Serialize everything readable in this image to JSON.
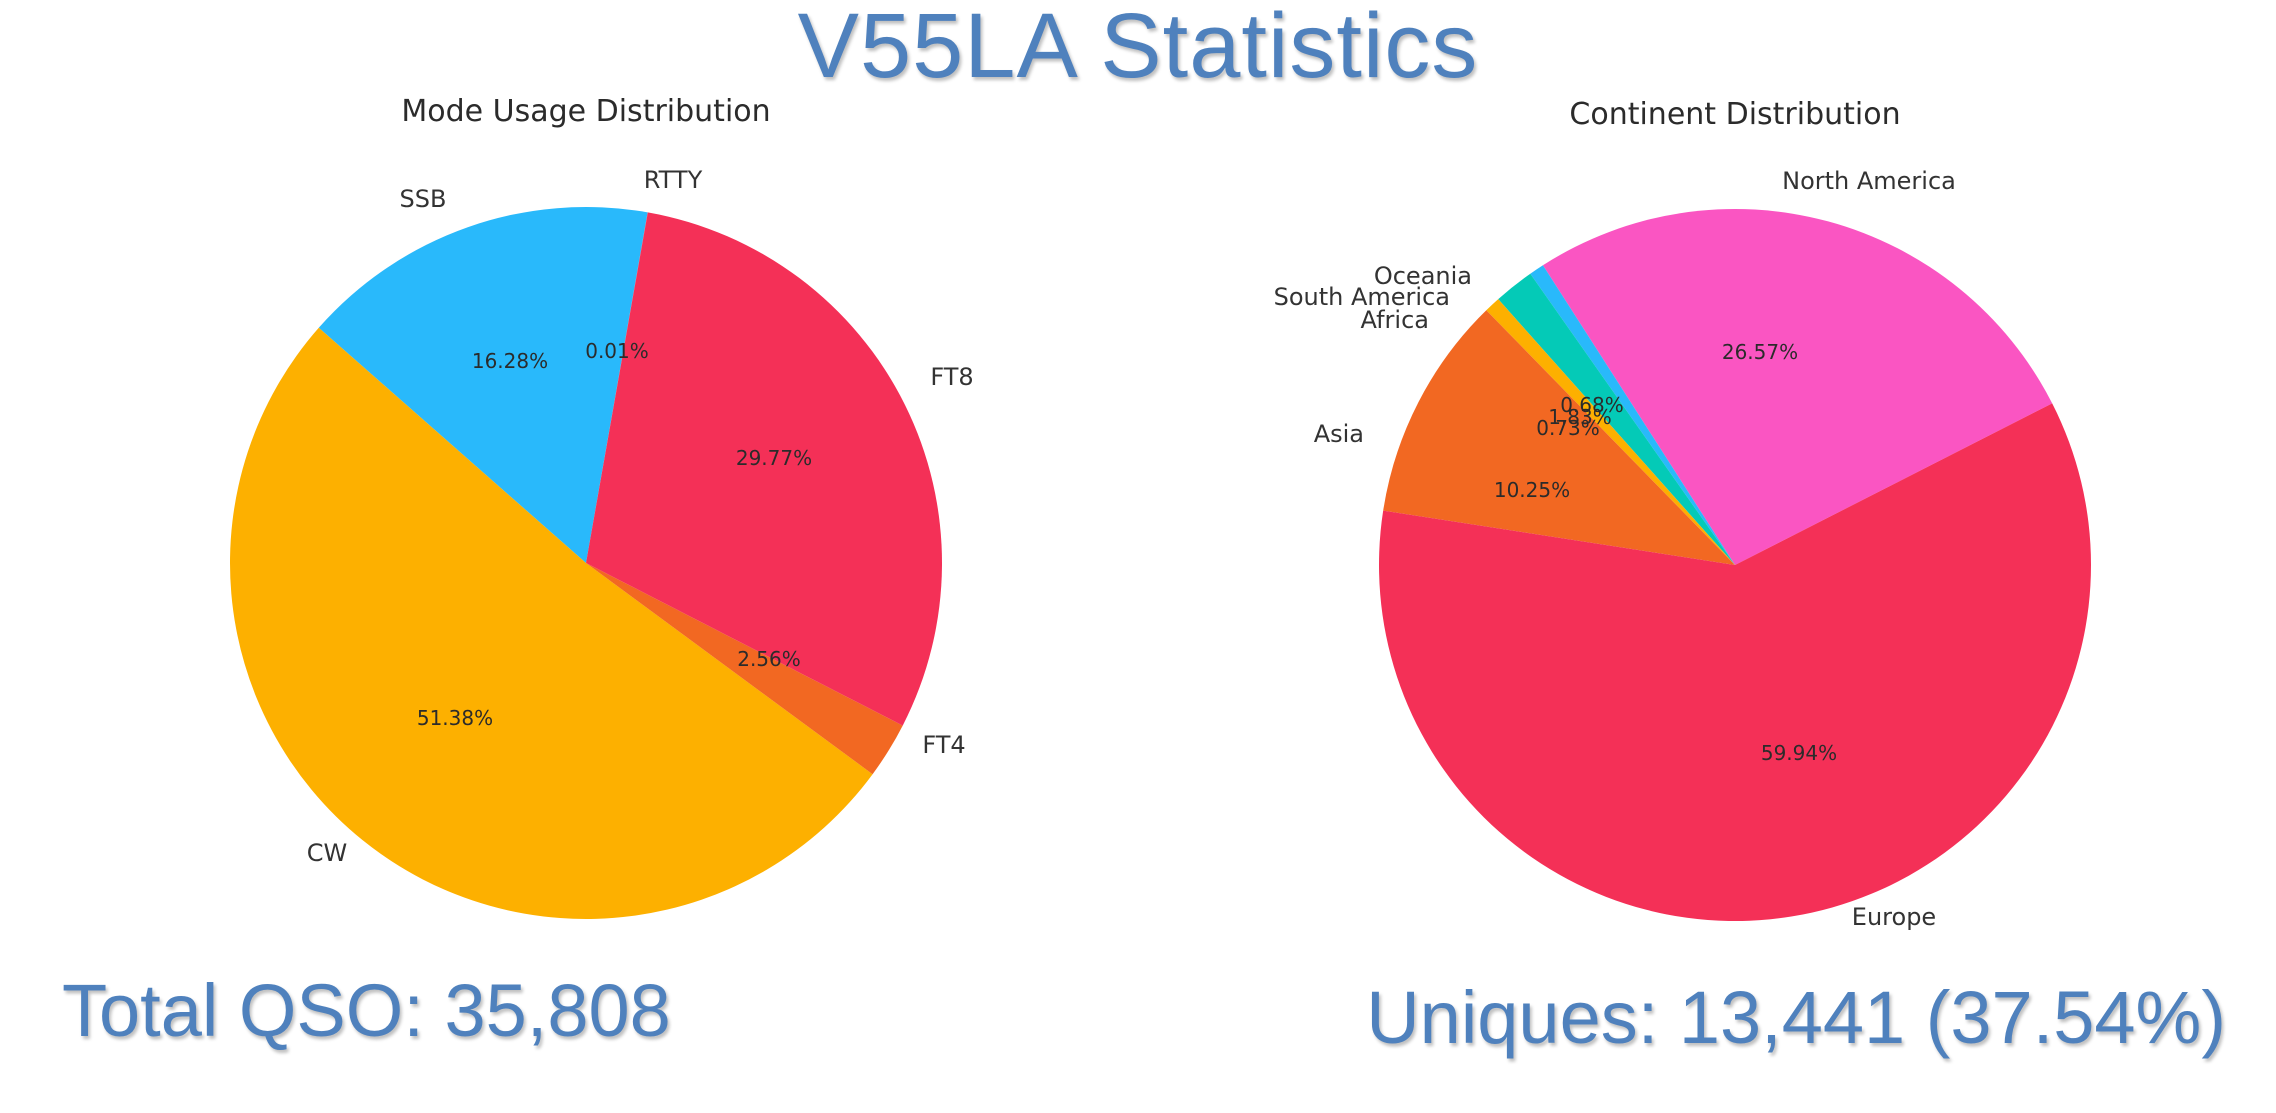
{
  "page_title": "V55LA Statistics",
  "total_qso_text": "Total QSO: 35,808",
  "uniques_text": "Uniques: 13,441 (37.54%)",
  "chart_data": [
    {
      "type": "pie",
      "title": "Mode Usage Distribution",
      "start_angle_deg": 80,
      "direction": "counterclockwise",
      "slices": [
        {
          "label": "RTTY",
          "value": 0.01,
          "pct_text": "0.01%",
          "color": "#f43f5e"
        },
        {
          "label": "SSB",
          "value": 16.28,
          "pct_text": "16.28%",
          "color": "#29b9fb"
        },
        {
          "label": "CW",
          "value": 51.38,
          "pct_text": "51.38%",
          "color": "#fdb000"
        },
        {
          "label": "FT4",
          "value": 2.56,
          "pct_text": "2.56%",
          "color": "#f26822"
        },
        {
          "label": "FT8",
          "value": 29.77,
          "pct_text": "29.77%",
          "color": "#f43057"
        }
      ]
    },
    {
      "type": "pie",
      "title": "Continent Distribution",
      "start_angle_deg": 27,
      "direction": "counterclockwise",
      "slices": [
        {
          "label": "North America",
          "value": 26.57,
          "pct_text": "26.57%",
          "color": "#fa55c2"
        },
        {
          "label": "Oceania",
          "value": 0.68,
          "pct_text": "0.68%",
          "color": "#29b9fb"
        },
        {
          "label": "South America",
          "value": 1.83,
          "pct_text": "1.83%",
          "color": "#04cab7"
        },
        {
          "label": "Africa",
          "value": 0.73,
          "pct_text": "0.73%",
          "color": "#fdb000"
        },
        {
          "label": "Asia",
          "value": 10.25,
          "pct_text": "10.25%",
          "color": "#f26822"
        },
        {
          "label": "Europe",
          "value": 59.94,
          "pct_text": "59.94%",
          "color": "#f43057"
        }
      ]
    }
  ]
}
